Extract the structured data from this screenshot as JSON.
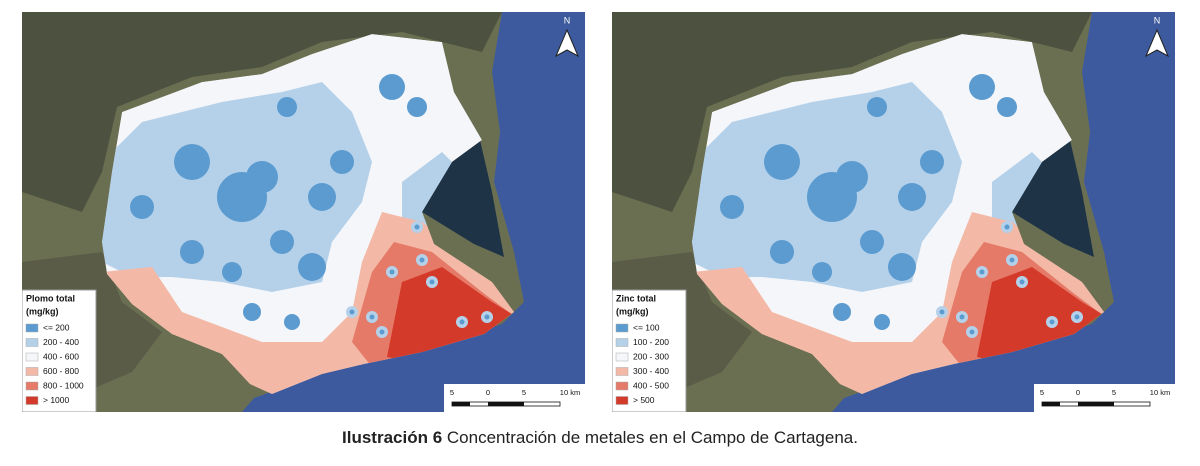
{
  "maps": [
    {
      "legend": {
        "title": "Plomo total",
        "unit": "(mg/kg)",
        "items": [
          {
            "label": "<= 200",
            "color": "#5b9bd0"
          },
          {
            "label": "200 - 400",
            "color": "#b5d1ea"
          },
          {
            "label": "400 - 600",
            "color": "#f4f6f9"
          },
          {
            "label": "600 - 800",
            "color": "#f3b9a6"
          },
          {
            "label": "800 - 1000",
            "color": "#e57a68"
          },
          {
            "label": "> 1000",
            "color": "#d43a2a"
          }
        ]
      },
      "scale": [
        "5",
        "0",
        "5",
        "10 km"
      ],
      "north": "N"
    },
    {
      "legend": {
        "title": "Zinc total",
        "unit": "(mg/kg)",
        "items": [
          {
            "label": "<= 100",
            "color": "#5b9bd0"
          },
          {
            "label": "100 - 200",
            "color": "#b5d1ea"
          },
          {
            "label": "200 - 300",
            "color": "#f4f6f9"
          },
          {
            "label": "300 - 400",
            "color": "#f3b9a6"
          },
          {
            "label": "400 - 500",
            "color": "#e57a68"
          },
          {
            "label": "> 500",
            "color": "#d43a2a"
          }
        ]
      },
      "scale": [
        "5",
        "0",
        "5",
        "10 km"
      ],
      "north": "N"
    }
  ],
  "caption": {
    "label": "Ilustración 6",
    "text": "Concentración de metales en el Campo de Cartagena."
  }
}
